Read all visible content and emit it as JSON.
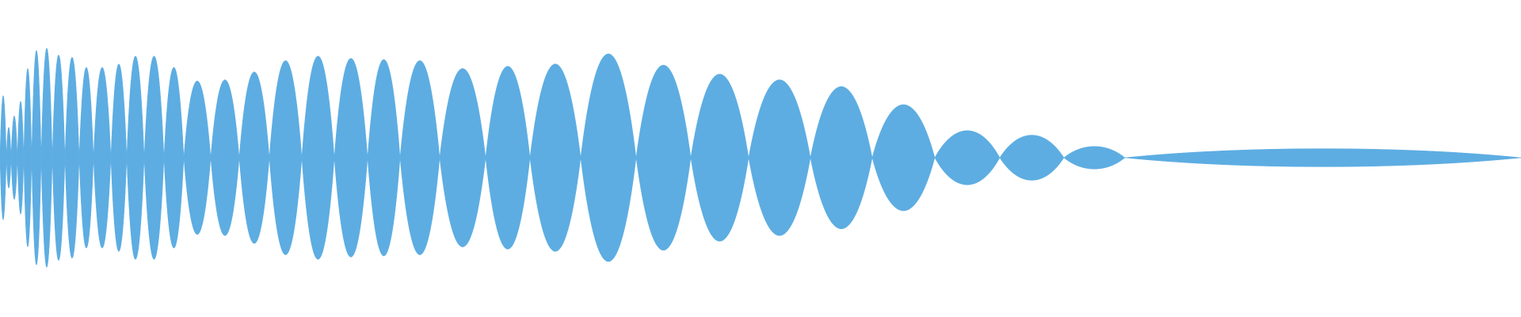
{
  "waveform": {
    "fill_color": "#5DADE2",
    "background_color": "#ffffff",
    "envelope_peaks": [
      0.55,
      0.27,
      0.37,
      0.5,
      0.79,
      0.95,
      0.97,
      0.91,
      0.89,
      0.8,
      0.8,
      0.83,
      0.9,
      0.9,
      0.8,
      0.68,
      0.69,
      0.76,
      0.86,
      0.9,
      0.88,
      0.87,
      0.86,
      0.79,
      0.81,
      0.83,
      0.92,
      0.82,
      0.74,
      0.69,
      0.63,
      0.47,
      0.24,
      0.2,
      0.1
    ]
  }
}
